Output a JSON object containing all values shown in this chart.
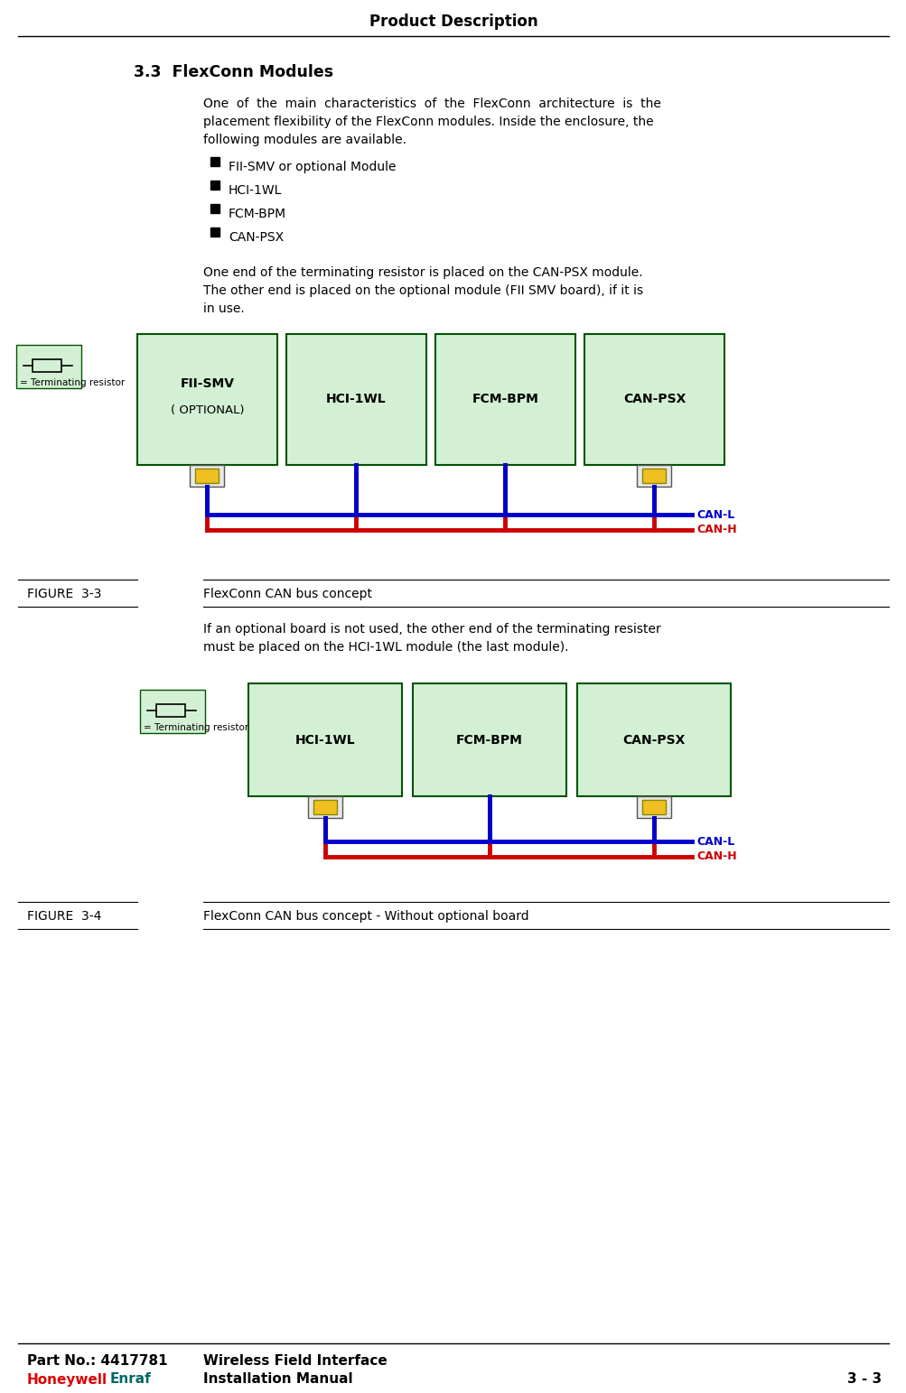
{
  "page_title": "Product Description",
  "section": "3.3  FlexConn Modules",
  "body1_lines": [
    "One  of  the  main  characteristics  of  the  FlexConn  architecture  is  the",
    "placement flexibility of the FlexConn modules. Inside the enclosure, the",
    "following modules are available."
  ],
  "bullets": [
    "FII-SMV or optional Module",
    "HCI-1WL",
    "FCM-BPM",
    "CAN-PSX"
  ],
  "body2_lines": [
    "One end of the terminating resistor is placed on the CAN-PSX module.",
    "The other end is placed on the optional module (FII SMV board), if it is",
    "in use."
  ],
  "fig3_label": "FIGURE  3-3",
  "fig3_caption": "FlexConn CAN bus concept",
  "fig4_label": "FIGURE  3-4",
  "fig4_caption": "FlexConn CAN bus concept - Without optional board",
  "intertext_lines": [
    "If an optional board is not used, the other end of the terminating resister",
    "must be placed on the HCI-1WL module (the last module)."
  ],
  "footer_left1": "Part No.: 4417781",
  "footer_left2_red": "Honeywell",
  "footer_left2_teal": "Enraf",
  "footer_mid1": "Wireless Field Interface",
  "footer_mid2": "Installation Manual",
  "footer_right": "3 - 3",
  "module_fill": "#d4f0d4",
  "module_border": "#005500",
  "can_l_color": "#0000cc",
  "can_h_color": "#cc0000",
  "connector_fill": "#f0c020",
  "connector_border": "#888800"
}
